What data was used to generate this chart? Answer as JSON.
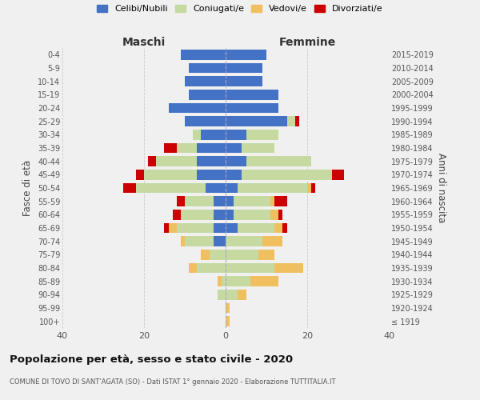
{
  "age_groups": [
    "100+",
    "95-99",
    "90-94",
    "85-89",
    "80-84",
    "75-79",
    "70-74",
    "65-69",
    "60-64",
    "55-59",
    "50-54",
    "45-49",
    "40-44",
    "35-39",
    "30-34",
    "25-29",
    "20-24",
    "15-19",
    "10-14",
    "5-9",
    "0-4"
  ],
  "birth_years": [
    "≤ 1919",
    "1920-1924",
    "1925-1929",
    "1930-1934",
    "1935-1939",
    "1940-1944",
    "1945-1949",
    "1950-1954",
    "1955-1959",
    "1960-1964",
    "1965-1969",
    "1970-1974",
    "1975-1979",
    "1980-1984",
    "1985-1989",
    "1990-1994",
    "1995-1999",
    "2000-2004",
    "2005-2009",
    "2010-2014",
    "2015-2019"
  ],
  "maschi": {
    "celibi": [
      0,
      0,
      0,
      0,
      0,
      0,
      3,
      3,
      3,
      3,
      5,
      7,
      7,
      7,
      6,
      10,
      14,
      9,
      10,
      9,
      11
    ],
    "coniugati": [
      0,
      0,
      2,
      1,
      7,
      4,
      7,
      9,
      8,
      7,
      17,
      13,
      10,
      5,
      2,
      0,
      0,
      0,
      0,
      0,
      0
    ],
    "vedovi": [
      0,
      0,
      0,
      1,
      2,
      2,
      1,
      2,
      0,
      0,
      0,
      0,
      0,
      0,
      0,
      0,
      0,
      0,
      0,
      0,
      0
    ],
    "divorziati": [
      0,
      0,
      0,
      0,
      0,
      0,
      0,
      1,
      2,
      2,
      3,
      2,
      2,
      3,
      0,
      0,
      0,
      0,
      0,
      0,
      0
    ]
  },
  "femmine": {
    "nubili": [
      0,
      0,
      0,
      0,
      0,
      0,
      0,
      3,
      2,
      2,
      3,
      4,
      5,
      4,
      5,
      15,
      13,
      13,
      9,
      9,
      10
    ],
    "coniugate": [
      0,
      0,
      3,
      6,
      12,
      8,
      9,
      9,
      9,
      9,
      17,
      22,
      16,
      8,
      8,
      2,
      0,
      0,
      0,
      0,
      0
    ],
    "vedove": [
      1,
      1,
      2,
      7,
      7,
      4,
      5,
      2,
      2,
      1,
      1,
      0,
      0,
      0,
      0,
      0,
      0,
      0,
      0,
      0,
      0
    ],
    "divorziate": [
      0,
      0,
      0,
      0,
      0,
      0,
      0,
      1,
      1,
      3,
      1,
      3,
      0,
      0,
      0,
      1,
      0,
      0,
      0,
      0,
      0
    ]
  },
  "color_celibi": "#4472c4",
  "color_coniugati": "#c5d9a0",
  "color_vedovi": "#f0c060",
  "color_divorziati": "#cc0000",
  "title": "Popolazione per età, sesso e stato civile - 2020",
  "subtitle": "COMUNE DI TOVO DI SANT’AGATA (SO) - Dati ISTAT 1° gennaio 2020 - Elaborazione TUTTITALIA.IT",
  "xlabel_maschi": "Maschi",
  "xlabel_femmine": "Femmine",
  "ylabel_left": "Fasce di età",
  "ylabel_right": "Anni di nascita",
  "legend_labels": [
    "Celibi/Nubili",
    "Coniugati/e",
    "Vedovi/e",
    "Divorziati/e"
  ],
  "xlim": 40,
  "background_color": "#f0f0f0"
}
